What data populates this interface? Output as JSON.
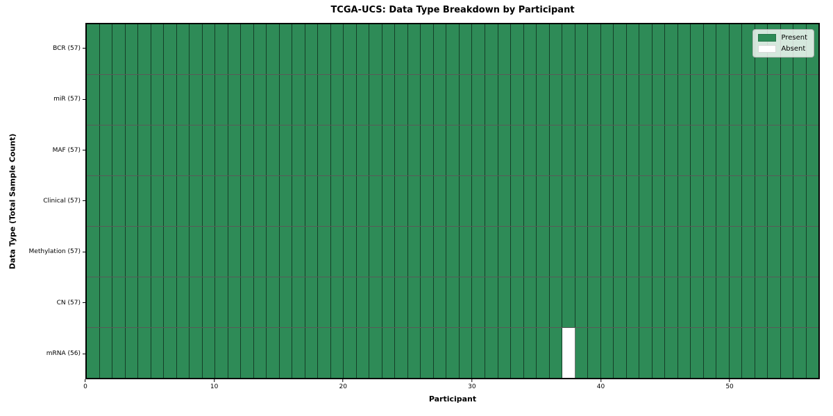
{
  "chart_data": {
    "type": "heatmap",
    "title": "TCGA-UCS: Data Type Breakdown by Participant",
    "xlabel": "Participant",
    "ylabel": "Data Type (Total Sample Count)",
    "n_participants": 57,
    "x_ticks": [
      0,
      10,
      20,
      30,
      40,
      50
    ],
    "rows": [
      {
        "label": "BCR (57)",
        "data_type": "BCR",
        "present_count": 57,
        "absent_participants": []
      },
      {
        "label": "miR (57)",
        "data_type": "miR",
        "present_count": 57,
        "absent_participants": []
      },
      {
        "label": "MAF (57)",
        "data_type": "MAF",
        "present_count": 57,
        "absent_participants": []
      },
      {
        "label": "Clinical (57)",
        "data_type": "Clinical",
        "present_count": 57,
        "absent_participants": []
      },
      {
        "label": "Methylation (57)",
        "data_type": "Methylation",
        "present_count": 57,
        "absent_participants": []
      },
      {
        "label": "CN (57)",
        "data_type": "CN",
        "present_count": 57,
        "absent_participants": []
      },
      {
        "label": "mRNA (56)",
        "data_type": "mRNA",
        "present_count": 56,
        "absent_participants": [
          37
        ]
      }
    ],
    "legend": [
      {
        "label": "Present",
        "color": "#2e8b57"
      },
      {
        "label": "Absent",
        "color": "#ffffff"
      }
    ],
    "colors": {
      "present": "#2e8b57",
      "absent": "#ffffff",
      "cell_edge": "rgba(0,0,0,0.55)",
      "frame": "#000000"
    },
    "legend_position": "upper right",
    "grid": "cell-edges"
  }
}
